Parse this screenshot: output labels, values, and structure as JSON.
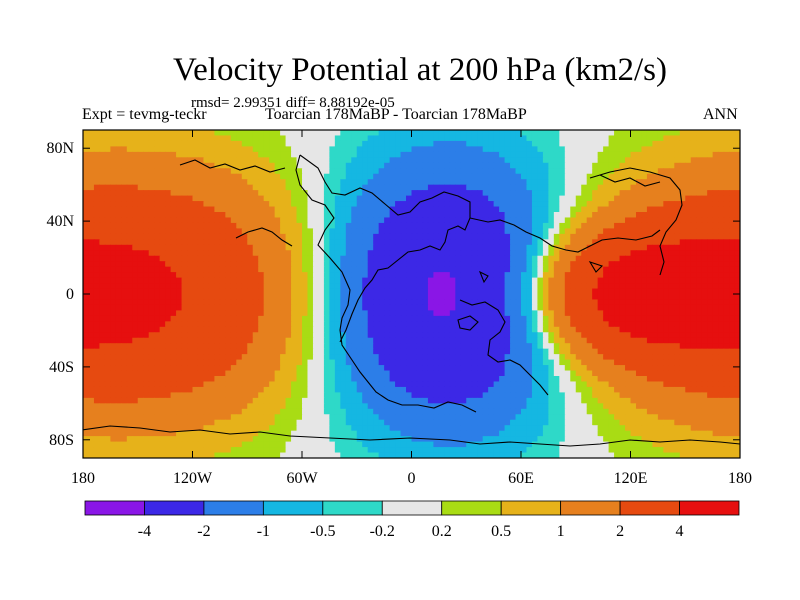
{
  "chart_data": {
    "type": "heatmap",
    "title": "Velocity Potential at 200 hPa (km2/s)",
    "stats_text": "rmsd= 2.99351  diff= 8.88192e-05",
    "left_label": "Expt = tevmg-teckr",
    "center_label": "Toarcian 178MaBP - Toarcian 178MaBP",
    "right_label": "ANN",
    "x_axis": {
      "range": [
        -180,
        180
      ],
      "ticks": [
        {
          "value": -180,
          "label": "180"
        },
        {
          "value": -120,
          "label": "120W"
        },
        {
          "value": -60,
          "label": "60W"
        },
        {
          "value": 0,
          "label": "0"
        },
        {
          "value": 60,
          "label": "60E"
        },
        {
          "value": 120,
          "label": "120E"
        },
        {
          "value": 180,
          "label": "180"
        }
      ]
    },
    "y_axis": {
      "range": [
        -90,
        90
      ],
      "ticks": [
        {
          "value": 80,
          "label": "80N"
        },
        {
          "value": 40,
          "label": "40N"
        },
        {
          "value": 0,
          "label": "0"
        },
        {
          "value": -40,
          "label": "40S"
        },
        {
          "value": -80,
          "label": "80S"
        }
      ]
    },
    "colorbar": {
      "colors": [
        "#8a16e6",
        "#3c28e6",
        "#2c7ee8",
        "#15b7e2",
        "#2ed9c8",
        "#e6e6e6",
        "#a9dc14",
        "#e6b21a",
        "#e6801e",
        "#e64a10",
        "#e60f0f"
      ],
      "labels": [
        "-4",
        "-2",
        "-1",
        "-0.5",
        "-0.2",
        "0.2",
        "0.5",
        "1",
        "2",
        "4"
      ]
    },
    "field": {
      "description_units": "km2/s",
      "negative_center": {
        "lon": 20,
        "lat": 0,
        "peak": -4.5
      },
      "positive_center": {
        "lon": -160,
        "lat": 0,
        "peak": 4.5
      }
    }
  }
}
